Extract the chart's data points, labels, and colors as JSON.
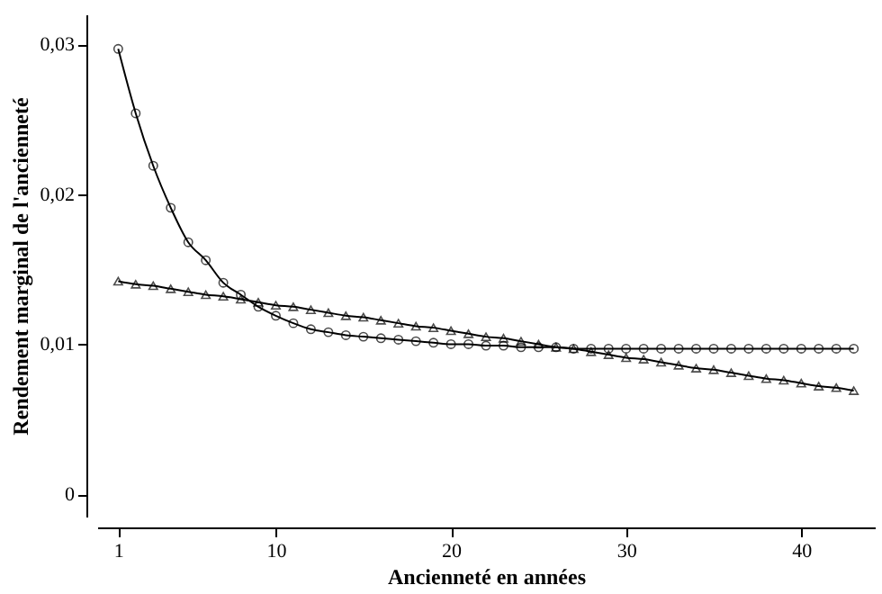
{
  "chart_data": {
    "type": "line",
    "xlabel": "Ancienneté en années",
    "ylabel": "Rendement marginal de l'ancienneté",
    "x": [
      1,
      2,
      3,
      4,
      5,
      6,
      7,
      8,
      9,
      10,
      11,
      12,
      13,
      14,
      15,
      16,
      17,
      18,
      19,
      20,
      21,
      22,
      23,
      24,
      25,
      26,
      27,
      28,
      29,
      30,
      31,
      32,
      33,
      34,
      35,
      36,
      37,
      38,
      39,
      40,
      41,
      42,
      43
    ],
    "series": [
      {
        "color": "#000000",
        "marker": "circle",
        "values": [
          0.0297,
          0.0254,
          0.0219,
          0.0191,
          0.0168,
          0.0156,
          0.0141,
          0.0133,
          0.0125,
          0.0119,
          0.0114,
          0.011,
          0.0108,
          0.0106,
          0.0105,
          0.0104,
          0.0103,
          0.0102,
          0.0101,
          0.01,
          0.01,
          0.0099,
          0.0099,
          0.0098,
          0.0098,
          0.0098,
          0.0097,
          0.0097,
          0.0097,
          0.0097,
          0.0097,
          0.0097,
          0.0097,
          0.0097,
          0.0097,
          0.0097,
          0.0097,
          0.0097,
          0.0097,
          0.0097,
          0.0097,
          0.0097,
          0.0097
        ]
      },
      {
        "color": "#000000",
        "marker": "triangle",
        "values": [
          0.0142,
          0.014,
          0.0139,
          0.0137,
          0.0135,
          0.0133,
          0.0132,
          0.013,
          0.0128,
          0.0126,
          0.0125,
          0.0123,
          0.0121,
          0.0119,
          0.0118,
          0.0116,
          0.0114,
          0.0112,
          0.0111,
          0.0109,
          0.0107,
          0.0105,
          0.0104,
          0.0102,
          0.01,
          0.0098,
          0.0097,
          0.0095,
          0.0093,
          0.0091,
          0.009,
          0.0088,
          0.0086,
          0.0084,
          0.0083,
          0.0081,
          0.0079,
          0.0077,
          0.0076,
          0.0074,
          0.0072,
          0.0071,
          0.0069
        ]
      }
    ],
    "xlim": [
      -0.2,
      44.2
    ],
    "xticks": [
      1,
      10,
      20,
      30,
      40
    ],
    "ylim": [
      -0.0015,
      0.032
    ],
    "yticks": [
      0,
      {
        "value": 0.01,
        "label": "0,01"
      },
      {
        "value": 0.02,
        "label": "0,02"
      },
      {
        "value": 0.03,
        "label": "0,03"
      }
    ],
    "grid": false,
    "line_style": "solid"
  }
}
